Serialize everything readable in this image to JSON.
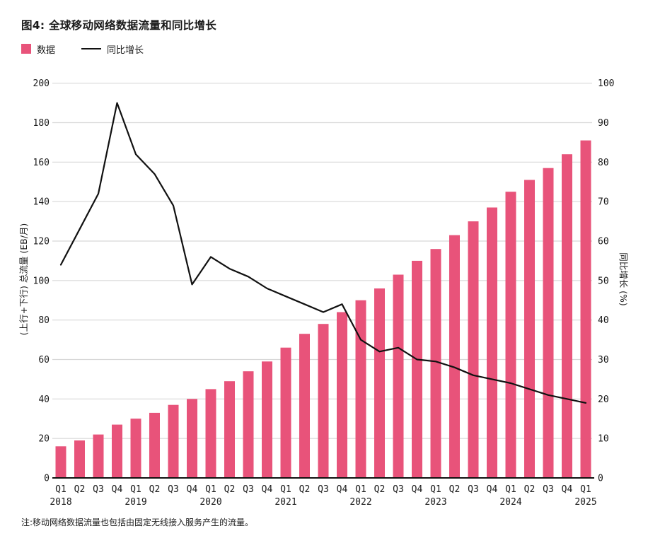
{
  "title": "图4: 全球移动网络数据流量和同比增长",
  "legend": [
    {
      "label": "数据",
      "type": "bar",
      "color": "#e8537a"
    },
    {
      "label": "同比增长",
      "type": "line",
      "color": "#111111"
    }
  ],
  "note": "注:移动网络数据流量也包括由固定无线接入服务产生的流量。",
  "colors": {
    "bar": "#e8537a",
    "line": "#111111",
    "grid": "#d8d8d8",
    "axis": "#111111",
    "text": "#1a1a1a"
  },
  "chart_data": {
    "type": "bar",
    "subtype": "bar+line-dual-axis",
    "title": "图4: 全球移动网络数据流量和同比增长",
    "categories": [
      "Q1",
      "Q2",
      "Q3",
      "Q4",
      "Q1",
      "Q2",
      "Q3",
      "Q4",
      "Q1",
      "Q2",
      "Q3",
      "Q4",
      "Q1",
      "Q2",
      "Q3",
      "Q4",
      "Q1",
      "Q2",
      "Q3",
      "Q4",
      "Q1",
      "Q2",
      "Q3",
      "Q4",
      "Q1",
      "Q2",
      "Q3",
      "Q4",
      "Q1"
    ],
    "year_labels": [
      {
        "label": "2018",
        "index": 0
      },
      {
        "label": "2019",
        "index": 4
      },
      {
        "label": "2020",
        "index": 8
      },
      {
        "label": "2021",
        "index": 12
      },
      {
        "label": "2022",
        "index": 16
      },
      {
        "label": "2023",
        "index": 20
      },
      {
        "label": "2024",
        "index": 24
      },
      {
        "label": "2025",
        "index": 28
      }
    ],
    "series": [
      {
        "name": "数据",
        "type": "bar",
        "axis": "left",
        "color": "#e8537a",
        "values": [
          16,
          19,
          22,
          27,
          30,
          33,
          37,
          40,
          45,
          49,
          54,
          59,
          66,
          73,
          78,
          84,
          90,
          96,
          103,
          110,
          116,
          123,
          130,
          137,
          145,
          151,
          157,
          164,
          171
        ]
      },
      {
        "name": "同比增长",
        "type": "line",
        "axis": "right",
        "color": "#111111",
        "values": [
          54,
          63,
          72,
          95,
          82,
          77,
          69,
          49,
          56,
          53,
          51,
          48,
          46,
          44,
          42,
          44,
          35,
          32,
          33,
          30,
          29.5,
          28,
          26,
          25,
          24,
          22.5,
          21,
          20,
          19
        ]
      }
    ],
    "left_axis": {
      "label": "(上行+下行) 总流量 (EB/月)",
      "min": 0,
      "max": 200,
      "step": 20
    },
    "right_axis": {
      "label": "同比增长 (%)",
      "min": 0,
      "max": 100,
      "step": 10
    },
    "grid": true,
    "legend_position": "top-left"
  }
}
